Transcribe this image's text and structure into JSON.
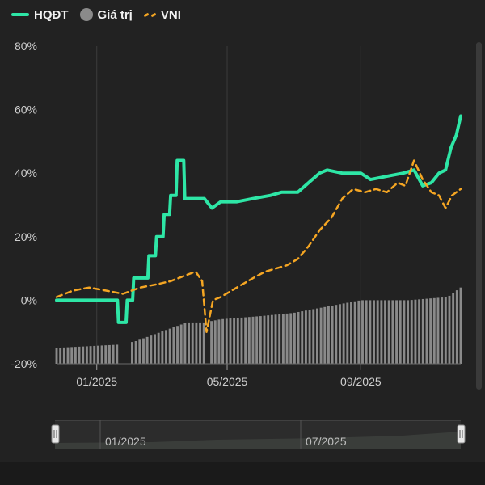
{
  "legend": {
    "items": [
      {
        "label": "HQĐT",
        "color": "#2ee6a6"
      },
      {
        "label": "Giá trị",
        "color": "#8a8a8a"
      },
      {
        "label": "VNI",
        "color": "#f5a623"
      }
    ]
  },
  "navigator": {
    "labels": [
      "01/2025",
      "07/2025"
    ]
  },
  "chart_data": {
    "type": "line",
    "x_tick_labels": [
      "01/2025",
      "05/2025",
      "09/2025"
    ],
    "y_tick_labels": [
      "80%",
      "60%",
      "40%",
      "20%",
      "0%",
      "-20%"
    ],
    "ylim": [
      -20,
      80
    ],
    "x_range": [
      "2024-11-25",
      "2025-12-02"
    ],
    "x_ticks": [
      "2025-01-01",
      "2025-05-01",
      "2025-09-01"
    ],
    "series": [
      {
        "name": "HQĐT",
        "color": "#2ee6a6",
        "style": "solid",
        "points": [
          [
            "2024-11-25",
            0
          ],
          [
            "2025-01-20",
            0
          ],
          [
            "2025-01-21",
            -7
          ],
          [
            "2025-01-28",
            -7
          ],
          [
            "2025-01-29",
            0
          ],
          [
            "2025-02-03",
            0
          ],
          [
            "2025-02-04",
            7
          ],
          [
            "2025-02-17",
            7
          ],
          [
            "2025-02-18",
            14
          ],
          [
            "2025-02-24",
            14
          ],
          [
            "2025-02-25",
            20
          ],
          [
            "2025-03-03",
            20
          ],
          [
            "2025-03-04",
            27
          ],
          [
            "2025-03-09",
            27
          ],
          [
            "2025-03-10",
            33
          ],
          [
            "2025-03-15",
            33
          ],
          [
            "2025-03-16",
            44
          ],
          [
            "2025-03-22",
            44
          ],
          [
            "2025-03-23",
            32
          ],
          [
            "2025-04-10",
            32
          ],
          [
            "2025-04-17",
            29
          ],
          [
            "2025-04-25",
            31
          ],
          [
            "2025-05-10",
            31
          ],
          [
            "2025-05-25",
            32
          ],
          [
            "2025-06-10",
            33
          ],
          [
            "2025-06-20",
            34
          ],
          [
            "2025-07-05",
            34
          ],
          [
            "2025-07-15",
            37
          ],
          [
            "2025-07-25",
            40
          ],
          [
            "2025-08-01",
            41
          ],
          [
            "2025-08-15",
            40
          ],
          [
            "2025-09-01",
            40
          ],
          [
            "2025-09-10",
            38
          ],
          [
            "2025-09-25",
            39
          ],
          [
            "2025-10-10",
            40
          ],
          [
            "2025-10-20",
            41
          ],
          [
            "2025-10-28",
            36
          ],
          [
            "2025-11-05",
            37
          ],
          [
            "2025-11-12",
            40
          ],
          [
            "2025-11-18",
            41
          ],
          [
            "2025-11-23",
            48
          ],
          [
            "2025-11-28",
            52
          ],
          [
            "2025-12-02",
            58
          ]
        ]
      },
      {
        "name": "VNI",
        "color": "#f5a623",
        "style": "dashed",
        "points": [
          [
            "2024-11-25",
            1
          ],
          [
            "2024-12-10",
            3
          ],
          [
            "2024-12-25",
            4
          ],
          [
            "2025-01-10",
            3
          ],
          [
            "2025-01-25",
            2
          ],
          [
            "2025-02-10",
            4
          ],
          [
            "2025-02-25",
            5
          ],
          [
            "2025-03-10",
            6
          ],
          [
            "2025-03-25",
            8
          ],
          [
            "2025-04-02",
            9
          ],
          [
            "2025-04-08",
            6
          ],
          [
            "2025-04-12",
            -10
          ],
          [
            "2025-04-18",
            0
          ],
          [
            "2025-04-25",
            1
          ],
          [
            "2025-05-05",
            3
          ],
          [
            "2025-05-15",
            5
          ],
          [
            "2025-05-25",
            7
          ],
          [
            "2025-06-05",
            9
          ],
          [
            "2025-06-15",
            10
          ],
          [
            "2025-06-25",
            11
          ],
          [
            "2025-07-05",
            13
          ],
          [
            "2025-07-15",
            17
          ],
          [
            "2025-07-25",
            22
          ],
          [
            "2025-08-05",
            26
          ],
          [
            "2025-08-15",
            32
          ],
          [
            "2025-08-25",
            35
          ],
          [
            "2025-09-05",
            34
          ],
          [
            "2025-09-15",
            35
          ],
          [
            "2025-09-25",
            34
          ],
          [
            "2025-10-05",
            37
          ],
          [
            "2025-10-12",
            36
          ],
          [
            "2025-10-20",
            44
          ],
          [
            "2025-10-28",
            38
          ],
          [
            "2025-11-05",
            34
          ],
          [
            "2025-11-12",
            33
          ],
          [
            "2025-11-18",
            29
          ],
          [
            "2025-11-24",
            33
          ],
          [
            "2025-12-02",
            35
          ]
        ]
      }
    ],
    "value_bars": {
      "name": "Giá trị",
      "color": "#8a8a8a",
      "start": "2024-11-25",
      "end": "2025-12-02",
      "count": 108,
      "levels": [
        [
          "2024-11-25",
          -15
        ],
        [
          "2025-01-20",
          -14
        ],
        [
          "2025-02-05",
          -13
        ],
        [
          "2025-03-01",
          -10
        ],
        [
          "2025-03-25",
          -7
        ],
        [
          "2025-04-10",
          -7
        ],
        [
          "2025-04-25",
          -6
        ],
        [
          "2025-06-01",
          -5
        ],
        [
          "2025-07-01",
          -4
        ],
        [
          "2025-09-01",
          0
        ],
        [
          "2025-10-15",
          0
        ],
        [
          "2025-11-20",
          1
        ],
        [
          "2025-12-02",
          4
        ]
      ],
      "gaps": [
        [
          "2025-01-22",
          "2025-02-02"
        ],
        [
          "2025-04-10",
          "2025-04-14"
        ]
      ]
    }
  }
}
